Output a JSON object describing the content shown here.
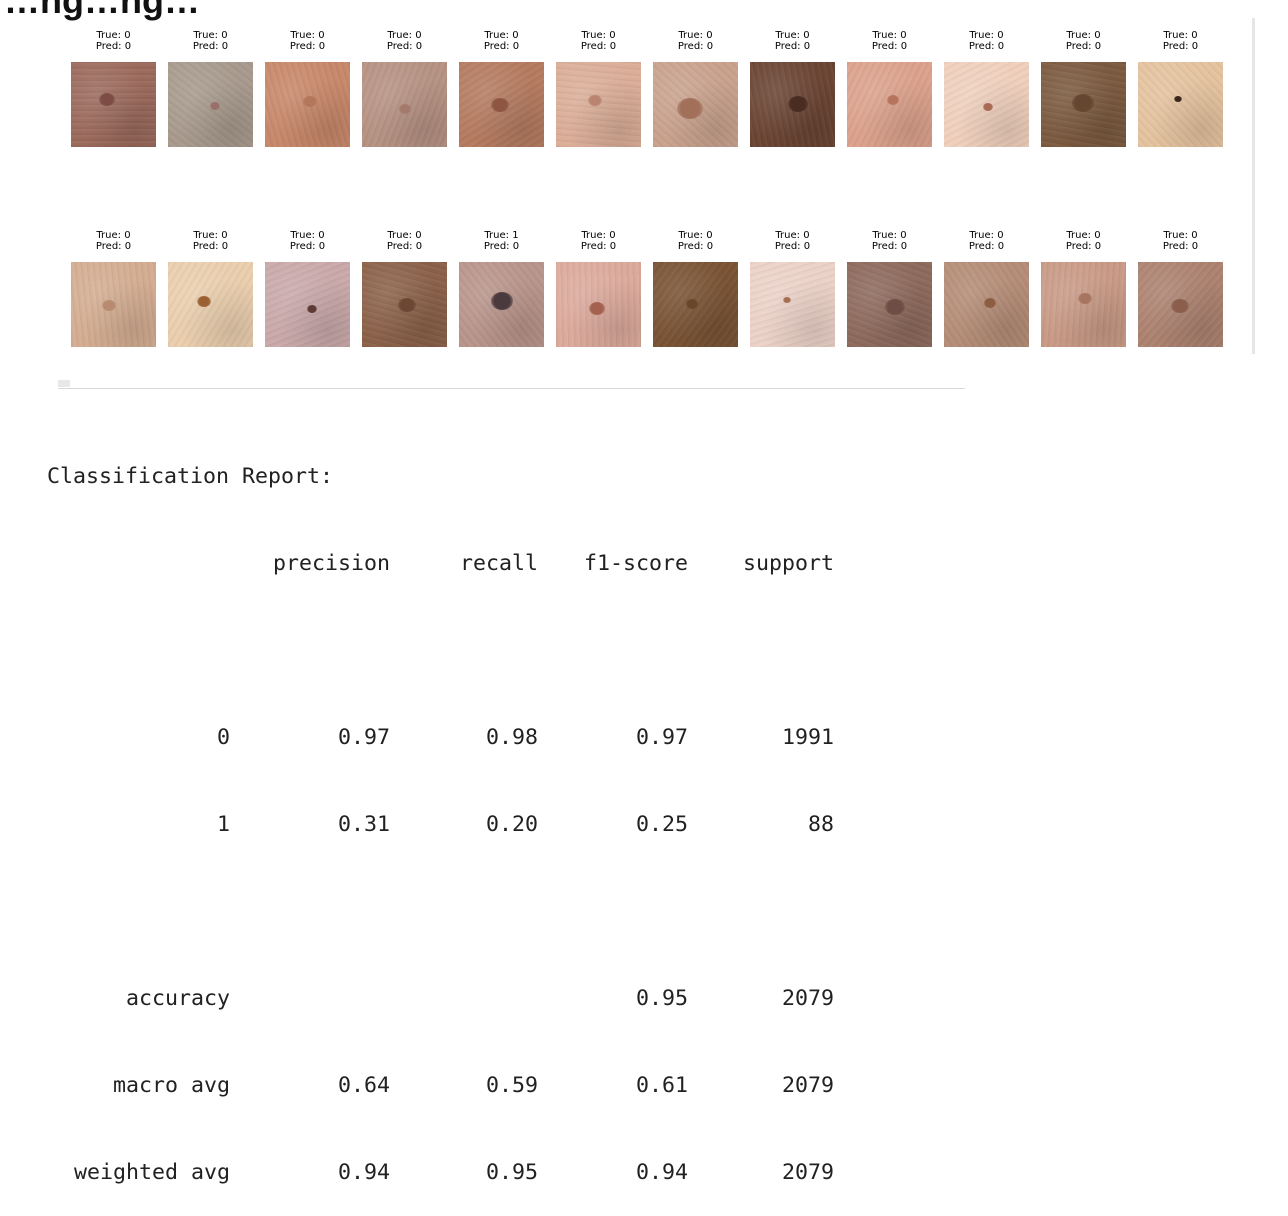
{
  "heading": "…ng…ng…",
  "grid": {
    "rows": [
      [
        {
          "true_label": "True: 0",
          "pred_label": "Pred: 0",
          "skin": "#9b6a5c",
          "lesion": "#7d4d45"
        },
        {
          "true_label": "True: 0",
          "pred_label": "Pred: 0",
          "skin": "#a89a8d",
          "lesion": "#9a6f6a"
        },
        {
          "true_label": "True: 0",
          "pred_label": "Pred: 0",
          "skin": "#c8886a",
          "lesion": "#b5775b"
        },
        {
          "true_label": "True: 0",
          "pred_label": "Pred: 0",
          "skin": "#b69283",
          "lesion": "#a47a6d"
        },
        {
          "true_label": "True: 0",
          "pred_label": "Pred: 0",
          "skin": "#b57b60",
          "lesion": "#8e5642"
        },
        {
          "true_label": "True: 0",
          "pred_label": "Pred: 0",
          "skin": "#dbae98",
          "lesion": "#b98571"
        },
        {
          "true_label": "True: 0",
          "pred_label": "Pred: 0",
          "skin": "#caa28e",
          "lesion": "#a27059"
        },
        {
          "true_label": "True: 0",
          "pred_label": "Pred: 0",
          "skin": "#6b4433",
          "lesion": "#4a2c22"
        },
        {
          "true_label": "True: 0",
          "pred_label": "Pred: 0",
          "skin": "#dca28c",
          "lesion": "#b8735c"
        },
        {
          "true_label": "True: 0",
          "pred_label": "Pred: 0",
          "skin": "#f0d0bd",
          "lesion": "#a86a52"
        },
        {
          "true_label": "True: 0",
          "pred_label": "Pred: 0",
          "skin": "#7b5a3f",
          "lesion": "#654630"
        },
        {
          "true_label": "True: 0",
          "pred_label": "Pred: 0",
          "skin": "#e5c39f",
          "lesion": "#3b2418"
        }
      ],
      [
        {
          "true_label": "True: 0",
          "pred_label": "Pred: 0",
          "skin": "#d4ad91",
          "lesion": "#b88a70"
        },
        {
          "true_label": "True: 0",
          "pred_label": "Pred: 0",
          "skin": "#ebcfae",
          "lesion": "#9c6133"
        },
        {
          "true_label": "True: 0",
          "pred_label": "Pred: 0",
          "skin": "#caa9aa",
          "lesion": "#5e3a34"
        },
        {
          "true_label": "True: 0",
          "pred_label": "Pred: 0",
          "skin": "#8b6149",
          "lesion": "#6c4733"
        },
        {
          "true_label": "True: 1",
          "pred_label": "Pred: 0",
          "skin": "#b9958b",
          "lesion": "#4b3a3d"
        },
        {
          "true_label": "True: 0",
          "pred_label": "Pred: 0",
          "skin": "#dcaa9c",
          "lesion": "#a4614f"
        },
        {
          "true_label": "True: 0",
          "pred_label": "Pred: 0",
          "skin": "#7a5334",
          "lesion": "#6a4629"
        },
        {
          "true_label": "True: 0",
          "pred_label": "Pred: 0",
          "skin": "#ecd2c8",
          "lesion": "#a66f51"
        },
        {
          "true_label": "True: 0",
          "pred_label": "Pred: 0",
          "skin": "#8d6a5c",
          "lesion": "#6e4e44"
        },
        {
          "true_label": "True: 0",
          "pred_label": "Pred: 0",
          "skin": "#b58d77",
          "lesion": "#8e5c40"
        },
        {
          "true_label": "True: 0",
          "pred_label": "Pred: 0",
          "skin": "#c99a86",
          "lesion": "#a77460"
        },
        {
          "true_label": "True: 0",
          "pred_label": "Pred: 0",
          "skin": "#ad8270",
          "lesion": "#8a5d4c"
        }
      ]
    ]
  },
  "report": {
    "title": "Classification Report:",
    "headers": [
      "",
      "precision",
      "recall",
      "f1-score",
      "support"
    ],
    "class_rows": [
      [
        "0",
        "0.97",
        "0.98",
        "0.97",
        "1991"
      ],
      [
        "1",
        "0.31",
        "0.20",
        "0.25",
        "88"
      ]
    ],
    "summary_rows": [
      [
        "accuracy",
        "",
        "",
        "0.95",
        "2079"
      ],
      [
        "macro avg",
        "0.64",
        "0.59",
        "0.61",
        "2079"
      ],
      [
        "weighted avg",
        "0.94",
        "0.95",
        "0.94",
        "2079"
      ]
    ]
  }
}
